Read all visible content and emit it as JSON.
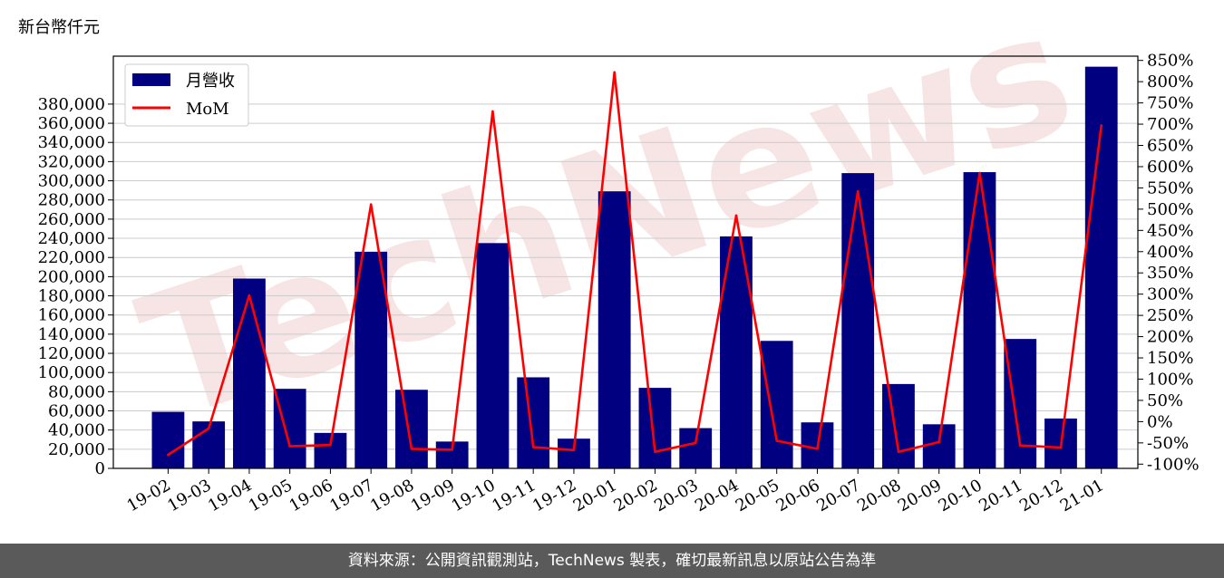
{
  "unit_label": "新台幣仟元",
  "footer_text": "資料來源：公開資訊觀測站，TechNews 製表，確切最新訊息以原站公告為準",
  "watermark_text": "TechNews",
  "colors": {
    "bar": "#000080",
    "line": "#ff0000",
    "watermark": "#f2d0d0",
    "footer_bg": "#5a5a5a"
  },
  "chart_data": {
    "type": "bar",
    "categories": [
      "19-02",
      "19-03",
      "19-04",
      "19-05",
      "19-06",
      "19-07",
      "19-08",
      "19-09",
      "19-10",
      "19-11",
      "19-12",
      "20-01",
      "20-02",
      "20-03",
      "20-04",
      "20-05",
      "20-06",
      "20-07",
      "20-08",
      "20-09",
      "20-10",
      "20-11",
      "20-12",
      "21-01"
    ],
    "series": [
      {
        "name": "月營收",
        "axis": "left",
        "type": "bar",
        "values": [
          59000,
          49000,
          198000,
          83000,
          37000,
          226000,
          82000,
          28000,
          235000,
          95000,
          31000,
          289000,
          84000,
          42000,
          242000,
          133000,
          48000,
          308000,
          88000,
          46000,
          309000,
          135000,
          52000,
          419000
        ]
      },
      {
        "name": "MoM",
        "axis": "right",
        "type": "line",
        "unit": "%",
        "values": [
          -78,
          -16,
          297,
          -58,
          -55,
          511,
          -64,
          -66,
          730,
          -60,
          -67,
          822,
          -71,
          -50,
          485,
          -45,
          -64,
          542,
          -71,
          -48,
          585,
          -56,
          -61,
          697
        ]
      }
    ],
    "yleft": {
      "ylim": [
        0,
        430000
      ],
      "ticks": [
        "0",
        "20,000",
        "40,000",
        "60,000",
        "80,000",
        "100,000",
        "120,000",
        "140,000",
        "160,000",
        "180,000",
        "200,000",
        "220,000",
        "240,000",
        "260,000",
        "280,000",
        "300,000",
        "320,000",
        "340,000",
        "360,000",
        "380,000"
      ]
    },
    "yright": {
      "ylim": [
        -110,
        860
      ],
      "ticks": [
        "-100%",
        "-50%",
        "0%",
        "50%",
        "100%",
        "150%",
        "200%",
        "250%",
        "300%",
        "350%",
        "400%",
        "450%",
        "500%",
        "550%",
        "600%",
        "650%",
        "700%",
        "750%",
        "800%",
        "850%"
      ]
    },
    "grid": "horizontal",
    "legend_position": "top-left"
  }
}
